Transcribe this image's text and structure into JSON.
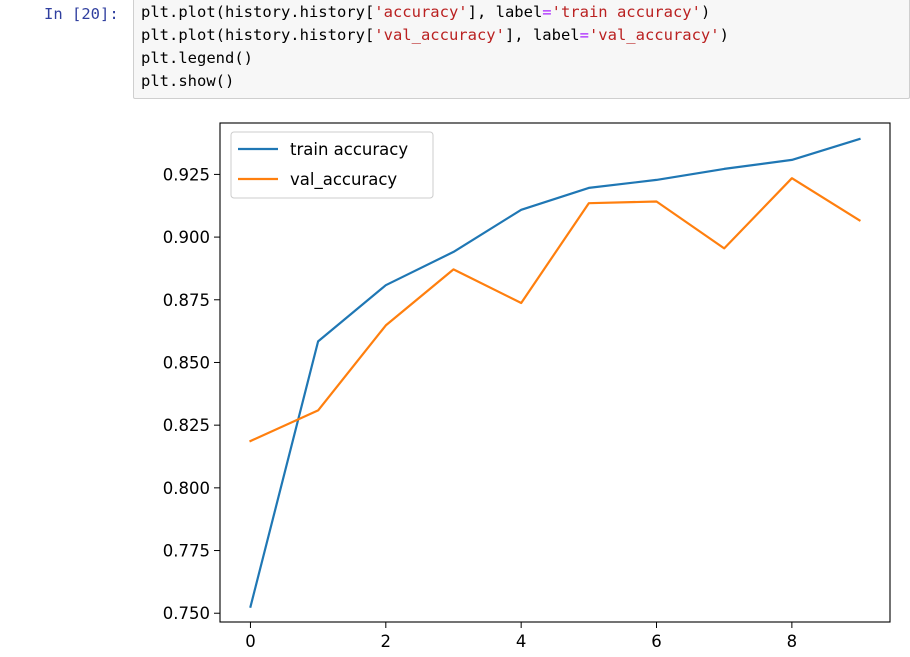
{
  "cell": {
    "prompt": "In [20]:",
    "lines": [
      [
        {
          "t": "plt.plot(history.history["
        },
        {
          "t": "'accuracy'",
          "c": "str"
        },
        {
          "t": "], label"
        },
        {
          "t": "=",
          "c": "eq"
        },
        {
          "t": "'train accuracy'",
          "c": "str"
        },
        {
          "t": ")"
        }
      ],
      [
        {
          "t": "plt.plot(history.history["
        },
        {
          "t": "'val_accuracy'",
          "c": "str"
        },
        {
          "t": "], label"
        },
        {
          "t": "=",
          "c": "eq"
        },
        {
          "t": "'val_accuracy'",
          "c": "str"
        },
        {
          "t": ")"
        }
      ],
      [
        {
          "t": "plt.legend()"
        }
      ],
      [
        {
          "t": "plt.show()"
        }
      ]
    ]
  },
  "chart_data": {
    "type": "line",
    "title": "",
    "xlabel": "",
    "ylabel": "",
    "xlim": [
      -0.45,
      9.45
    ],
    "ylim": [
      0.7465,
      0.9455
    ],
    "xticks": [
      0,
      2,
      4,
      6,
      8
    ],
    "xtick_labels": [
      "0",
      "2",
      "4",
      "6",
      "8"
    ],
    "yticks": [
      0.75,
      0.775,
      0.8,
      0.825,
      0.85,
      0.875,
      0.9,
      0.925
    ],
    "ytick_labels": [
      "0.750",
      "0.775",
      "0.800",
      "0.825",
      "0.850",
      "0.875",
      "0.900",
      "0.925"
    ],
    "grid": false,
    "legend_position": "upper-left",
    "x": [
      0,
      1,
      2,
      3,
      4,
      5,
      6,
      7,
      8,
      9
    ],
    "series": [
      {
        "name": "train accuracy",
        "color": "#1f77b4",
        "values": [
          0.7526,
          0.8584,
          0.8808,
          0.8941,
          0.9109,
          0.9196,
          0.9228,
          0.9272,
          0.9308,
          0.9391
        ]
      },
      {
        "name": "val_accuracy",
        "color": "#ff7f0e",
        "values": [
          0.8187,
          0.8309,
          0.8648,
          0.8871,
          0.8737,
          0.9135,
          0.9142,
          0.8955,
          0.9235,
          0.9067
        ]
      }
    ]
  }
}
